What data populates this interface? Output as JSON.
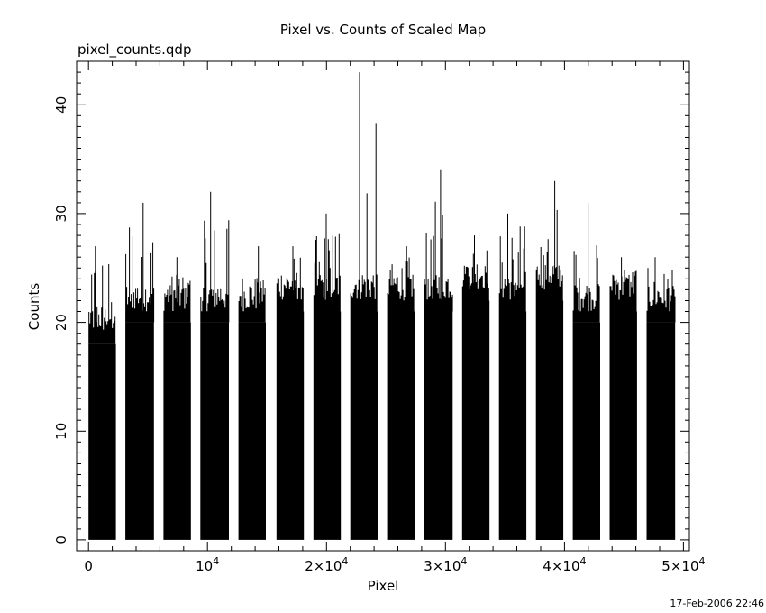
{
  "header": {
    "file_label": "pixel_counts.qdp",
    "timestamp": "17-Feb-2006 22:46"
  },
  "chart_data": {
    "type": "bar",
    "title": "Pixel vs. Counts of Scaled Map",
    "xlabel": "Pixel",
    "ylabel": "Counts",
    "xlim": [
      -1000,
      50500
    ],
    "ylim": [
      -1,
      44
    ],
    "x_ticks": [
      {
        "value": 0,
        "label": "0"
      },
      {
        "value": 10000,
        "label": "10^4"
      },
      {
        "value": 20000,
        "label": "2×10^4"
      },
      {
        "value": 30000,
        "label": "3×10^4"
      },
      {
        "value": 40000,
        "label": "4×10^4"
      },
      {
        "value": 50000,
        "label": "5×10^4"
      }
    ],
    "y_ticks": [
      0,
      10,
      20,
      30,
      40
    ],
    "blocks": [
      {
        "x_start": 0,
        "x_end": 2300,
        "base": 18,
        "max": 27
      },
      {
        "x_start": 3100,
        "x_end": 5500,
        "base": 20,
        "max": 31
      },
      {
        "x_start": 6300,
        "x_end": 8600,
        "base": 20,
        "max": 26
      },
      {
        "x_start": 9400,
        "x_end": 11800,
        "base": 20,
        "max": 32
      },
      {
        "x_start": 12600,
        "x_end": 14900,
        "base": 20,
        "max": 27
      },
      {
        "x_start": 15800,
        "x_end": 18100,
        "base": 21,
        "max": 27
      },
      {
        "x_start": 18900,
        "x_end": 21200,
        "base": 21,
        "max": 30
      },
      {
        "x_start": 22000,
        "x_end": 24300,
        "base": 21,
        "max": 43
      },
      {
        "x_start": 25100,
        "x_end": 27400,
        "base": 21,
        "max": 27
      },
      {
        "x_start": 28200,
        "x_end": 30600,
        "base": 21,
        "max": 34
      },
      {
        "x_start": 31400,
        "x_end": 33700,
        "base": 22,
        "max": 28
      },
      {
        "x_start": 34500,
        "x_end": 36800,
        "base": 21,
        "max": 30
      },
      {
        "x_start": 37600,
        "x_end": 39900,
        "base": 22,
        "max": 33
      },
      {
        "x_start": 40700,
        "x_end": 43000,
        "base": 20,
        "max": 31
      },
      {
        "x_start": 43800,
        "x_end": 46100,
        "base": 21,
        "max": 26
      },
      {
        "x_start": 46900,
        "x_end": 49300,
        "base": 20,
        "max": 26
      }
    ],
    "grid": false,
    "legend": "none"
  }
}
